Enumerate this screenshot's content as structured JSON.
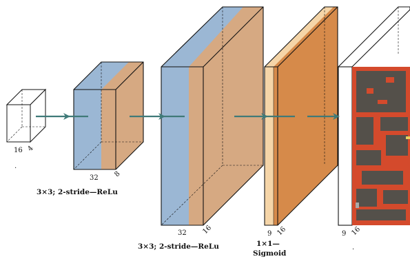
{
  "colors": {
    "blue": "#9bb7d4",
    "tan": "#d6a982",
    "peach": "#f5d5a8",
    "orange": "#d68a4a",
    "arrow": "#3f7a78",
    "brick": "#d44a2c",
    "dark": "#54504a"
  },
  "blocks": [
    {
      "id": "input",
      "dims": [
        "16",
        "4"
      ],
      "caption": [],
      "extra": "."
    },
    {
      "id": "conv1",
      "dims": [
        "32",
        "8"
      ],
      "caption": [
        "3×3; 2-stride—ReLu"
      ]
    },
    {
      "id": "conv2",
      "dims": [
        "32",
        "16"
      ],
      "caption": [
        "3×3; 2-stride—ReLu"
      ]
    },
    {
      "id": "sigmoid",
      "dims": [
        "9",
        "16"
      ],
      "caption": [
        "1×1—",
        "Sigmoid"
      ]
    },
    {
      "id": "output",
      "dims": [
        "9",
        "16"
      ],
      "caption": [],
      "extra": "."
    }
  ]
}
